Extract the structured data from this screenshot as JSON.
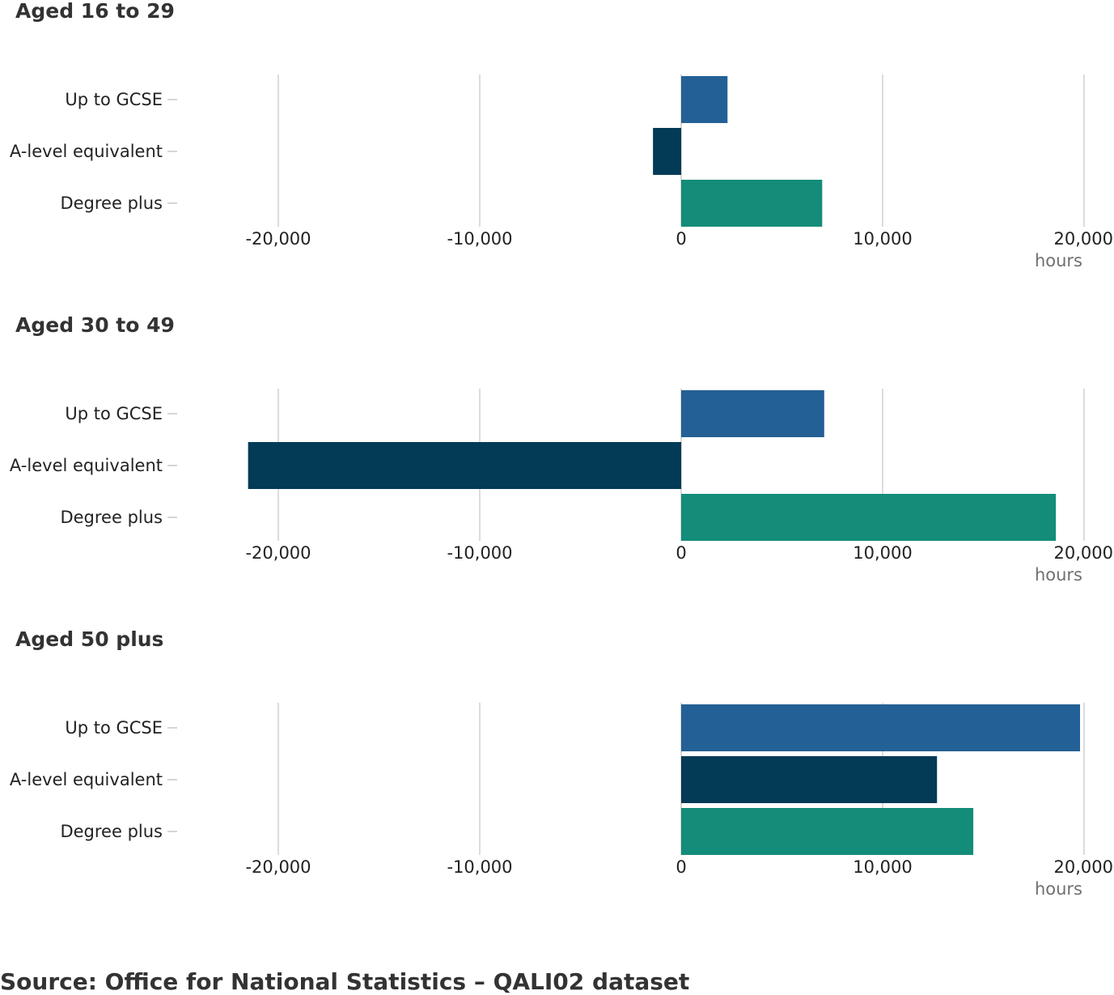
{
  "chart_data": {
    "type": "bar",
    "orientation": "horizontal",
    "unit": "hours",
    "categories": [
      "Up to GCSE",
      "A-level equivalent",
      "Degree plus"
    ],
    "category_colors": [
      "#236095",
      "#033A56",
      "#138C7A"
    ],
    "xlim": [
      -25000,
      20000
    ],
    "ticks": [
      -20000,
      -10000,
      0,
      10000,
      20000
    ],
    "tick_labels": [
      "-20,000",
      "-10,000",
      "0",
      "10,000",
      "20,000"
    ],
    "grid": true,
    "panels": [
      {
        "title": "Aged 16 to 29",
        "values": [
          2300,
          -1400,
          7000
        ]
      },
      {
        "title": "Aged 30 to 49",
        "values": [
          7100,
          -21500,
          18600
        ]
      },
      {
        "title": "Aged 50 plus",
        "values": [
          19800,
          12700,
          14500
        ]
      }
    ]
  },
  "source": "Source: Office for National Statistics – QALI02 dataset"
}
